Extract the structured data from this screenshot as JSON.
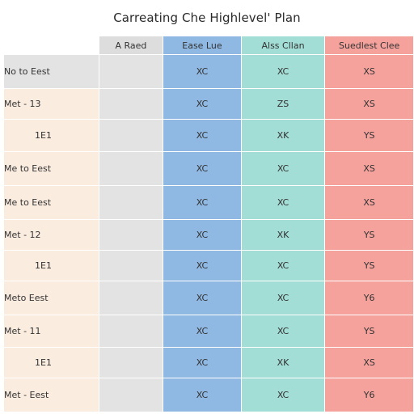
{
  "title": "Carreating Che Highlevel' Plan",
  "header": [
    "",
    "A Raed",
    "Ease Lue",
    "Alss Cllan",
    "Suedlest Clee"
  ],
  "rows": [
    {
      "label": "No to Eest",
      "c1": "",
      "c2": "XC",
      "c3": "XC",
      "c4": "XS"
    },
    {
      "label": "Met - 13",
      "c1": "",
      "c2": "XC",
      "c3": "ZS",
      "c4": "XS"
    },
    {
      "label": "1E1",
      "c1": "",
      "c2": "XC",
      "c3": "XK",
      "c4": "YS"
    },
    {
      "label": "Me to Eest",
      "c1": "",
      "c2": "XC",
      "c3": "XC",
      "c4": "XS"
    },
    {
      "label": "Me to Eest",
      "c1": "",
      "c2": "XC",
      "c3": "XC",
      "c4": "XS"
    },
    {
      "label": "Met - 12",
      "c1": "",
      "c2": "XC",
      "c3": "XK",
      "c4": "YS"
    },
    {
      "label": "1E1",
      "c1": "",
      "c2": "XC",
      "c3": "XC",
      "c4": "YS"
    },
    {
      "label": "Meto Eest",
      "c1": "",
      "c2": "XC",
      "c3": "XC",
      "c4": "Y6"
    },
    {
      "label": "Met - 11",
      "c1": "",
      "c2": "XC",
      "c3": "XC",
      "c4": "YS"
    },
    {
      "label": "1E1",
      "c1": "",
      "c2": "XC",
      "c3": "XK",
      "c4": "XS"
    },
    {
      "label": "Met - Eest",
      "c1": "",
      "c2": "XC",
      "c3": "XC",
      "c4": "Y6"
    }
  ]
}
